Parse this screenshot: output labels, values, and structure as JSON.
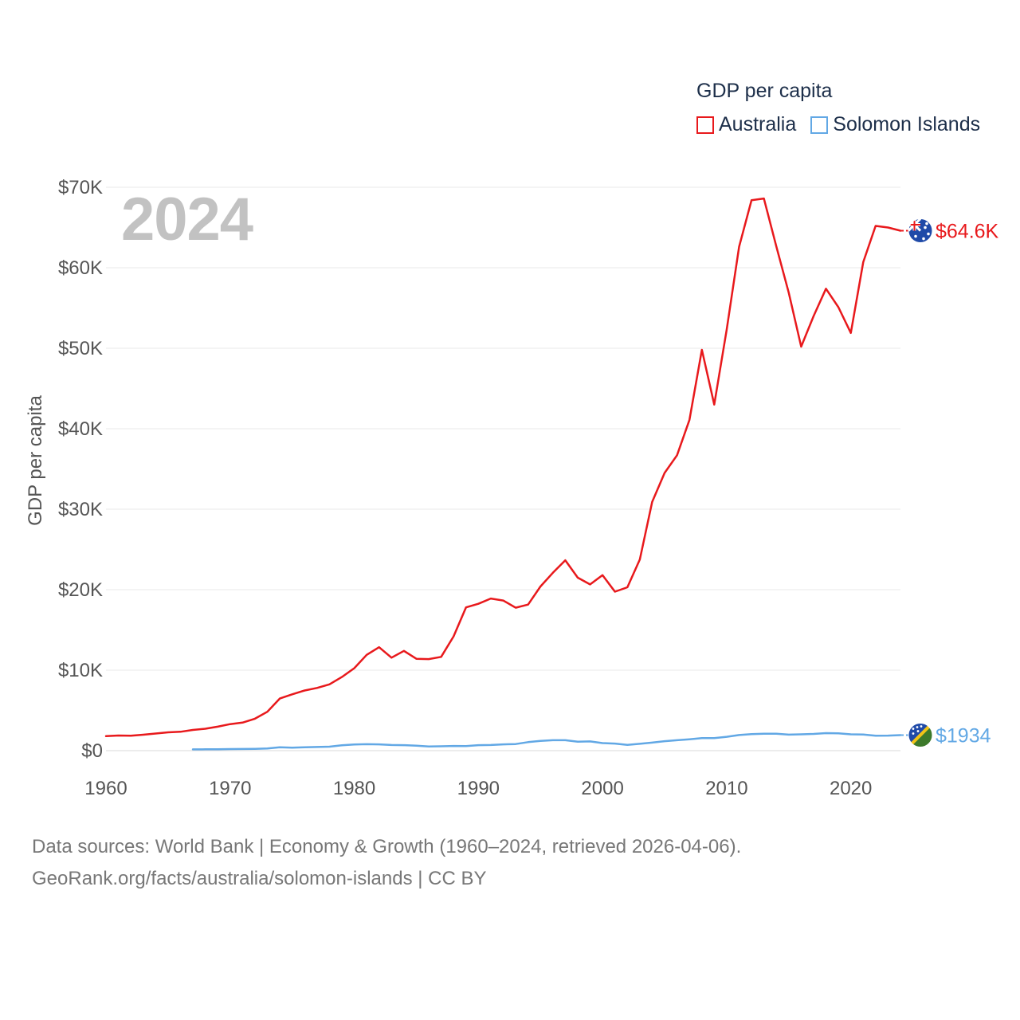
{
  "legend": {
    "title": "GDP per capita",
    "items": [
      {
        "label": "Australia",
        "color": "#e8191c"
      },
      {
        "label": "Solomon Islands",
        "color": "#62a8e5"
      }
    ]
  },
  "footer": {
    "line1": "Data sources: World Bank | Economy & Growth (1960–2024, retrieved 2026-04-06).",
    "line2": "GeoRank.org/facts/australia/solomon-islands | CC BY"
  },
  "chart_data": {
    "type": "line",
    "title": "GDP per capita",
    "year_label": "2024",
    "xlabel": "",
    "ylabel": "GDP per capita",
    "xlim": [
      1960,
      2024
    ],
    "ylim": [
      0,
      70000
    ],
    "x_ticks": [
      1960,
      1970,
      1980,
      1990,
      2000,
      2010,
      2020
    ],
    "x_tick_labels": [
      "1960",
      "1970",
      "1980",
      "1990",
      "2000",
      "2010",
      "2020"
    ],
    "y_ticks": [
      0,
      10000,
      20000,
      30000,
      40000,
      50000,
      60000,
      70000
    ],
    "y_tick_labels": [
      "$0",
      "$10K",
      "$20K",
      "$30K",
      "$40K",
      "$50K",
      "$60K",
      "$70K"
    ],
    "grid": true,
    "legend_position": "top-right",
    "series": [
      {
        "name": "Australia",
        "color": "#e8191c",
        "end_label": "$64.6K",
        "flag_icon": "australia-flag-icon",
        "x": [
          1960,
          1961,
          1962,
          1963,
          1964,
          1965,
          1966,
          1967,
          1968,
          1969,
          1970,
          1971,
          1972,
          1973,
          1974,
          1975,
          1976,
          1977,
          1978,
          1979,
          1980,
          1981,
          1982,
          1983,
          1984,
          1985,
          1986,
          1987,
          1988,
          1989,
          1990,
          1991,
          1992,
          1993,
          1994,
          1995,
          1996,
          1997,
          1998,
          1999,
          2000,
          2001,
          2002,
          2003,
          2004,
          2005,
          2006,
          2007,
          2008,
          2009,
          2010,
          2011,
          2012,
          2013,
          2014,
          2015,
          2016,
          2017,
          2018,
          2019,
          2020,
          2021,
          2022,
          2023,
          2024
        ],
        "values": [
          1800,
          1880,
          1850,
          1980,
          2130,
          2280,
          2350,
          2570,
          2720,
          2980,
          3300,
          3490,
          3970,
          4830,
          6480,
          7000,
          7480,
          7790,
          8240,
          9150,
          10250,
          11900,
          12850,
          11550,
          12400,
          11420,
          11380,
          11650,
          14200,
          17800,
          18250,
          18900,
          18650,
          17760,
          18150,
          20400,
          22100,
          23650,
          21500,
          20650,
          21800,
          19750,
          20300,
          23750,
          30900,
          34500,
          36700,
          41100,
          49800,
          43000,
          52300,
          62600,
          68400,
          68600,
          62650,
          56900,
          50200,
          54000,
          57400,
          55100,
          51900,
          60700,
          65200,
          65000,
          64600
        ]
      },
      {
        "name": "Solomon Islands",
        "color": "#62a8e5",
        "end_label": "$1934",
        "flag_icon": "solomon-islands-flag-icon",
        "x": [
          1967,
          1968,
          1969,
          1970,
          1971,
          1972,
          1973,
          1974,
          1975,
          1976,
          1977,
          1978,
          1979,
          1980,
          1981,
          1982,
          1983,
          1984,
          1985,
          1986,
          1987,
          1988,
          1989,
          1990,
          1991,
          1992,
          1993,
          1994,
          1995,
          1996,
          1997,
          1998,
          1999,
          2000,
          2001,
          2002,
          2003,
          2004,
          2005,
          2006,
          2007,
          2008,
          2009,
          2010,
          2011,
          2012,
          2013,
          2014,
          2015,
          2016,
          2017,
          2018,
          2019,
          2020,
          2021,
          2022,
          2023,
          2024
        ],
        "values": [
          160,
          170,
          180,
          200,
          210,
          230,
          280,
          420,
          380,
          420,
          460,
          500,
          660,
          770,
          800,
          780,
          700,
          680,
          620,
          520,
          540,
          580,
          560,
          680,
          700,
          780,
          820,
          1060,
          1220,
          1300,
          1300,
          1120,
          1150,
          940,
          880,
          710,
          850,
          1000,
          1180,
          1300,
          1420,
          1550,
          1560,
          1720,
          1940,
          2050,
          2100,
          2110,
          1990,
          2030,
          2080,
          2180,
          2150,
          2030,
          2010,
          1850,
          1870,
          1934
        ]
      }
    ]
  }
}
